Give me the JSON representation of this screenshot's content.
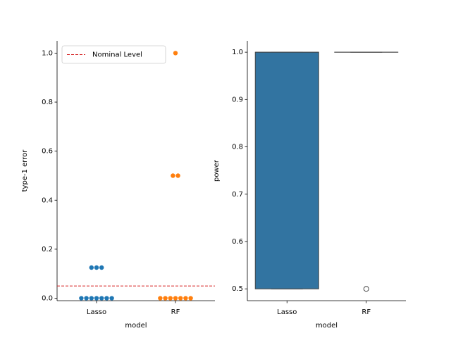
{
  "chart_data": [
    {
      "type": "swarm",
      "ylabel": "type-1 error",
      "xlabel": "model",
      "categories": [
        "Lasso",
        "RF"
      ],
      "colors": [
        "#1f77b4",
        "#ff7f0e"
      ],
      "points": [
        [
          0,
          0,
          0,
          0,
          0,
          0,
          0,
          0.125,
          0.125,
          0.125
        ],
        [
          0,
          0,
          0,
          0,
          0,
          0,
          0,
          0.5,
          0.5,
          1.0
        ]
      ],
      "reference_line": {
        "name": "Nominal Level",
        "value": 0.05,
        "color": "#d62728"
      },
      "legend": "upper left",
      "ylim": [
        -0.01,
        1.05
      ],
      "yticks": [
        {
          "value": 0,
          "label": "0.0"
        },
        0.2,
        0.4,
        0.6,
        0.8,
        {
          "value": 1,
          "label": "1.0"
        }
      ]
    },
    {
      "type": "box",
      "ylabel": "power",
      "xlabel": "model",
      "categories": [
        "Lasso",
        "RF"
      ],
      "color": "#3274a1",
      "boxes": [
        {
          "whisker_low": 0.5,
          "q1": 0.5,
          "median": 1.0,
          "q3": 1.0,
          "whisker_high": 1.0,
          "outliers": []
        },
        {
          "whisker_low": 1.0,
          "q1": 1.0,
          "median": 1.0,
          "q3": 1.0,
          "whisker_high": 1.0,
          "outliers": [
            0.5
          ]
        }
      ],
      "ylim": [
        0.475,
        1.024
      ],
      "yticks": [
        0.5,
        0.6,
        0.7,
        0.8,
        0.9,
        {
          "value": 1,
          "label": "1.0"
        }
      ]
    }
  ]
}
